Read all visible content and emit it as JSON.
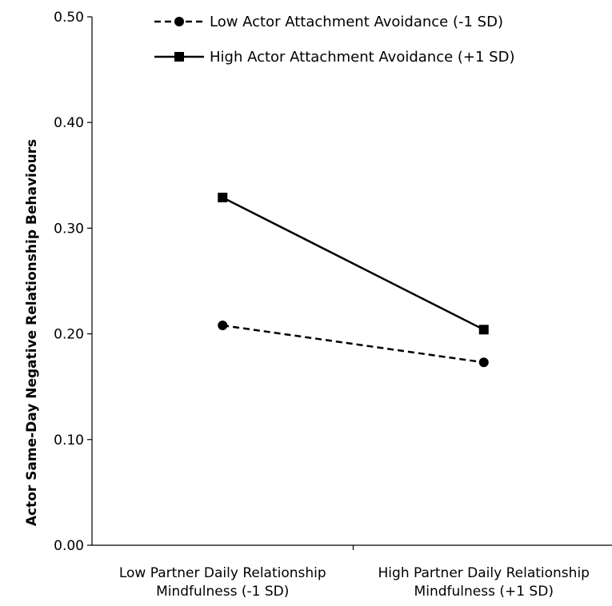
{
  "chart_data": {
    "type": "line",
    "title": "",
    "xlabel": "",
    "ylabel": "Actor Same-Day Negative Relationship Behaviours",
    "categories": [
      [
        "Low Partner Daily Relationship",
        "Mindfulness (-1 SD)"
      ],
      [
        "High Partner Daily Relationship",
        "Mindfulness (+1 SD)"
      ]
    ],
    "ylim": [
      0,
      0.5
    ],
    "yticks": [
      "0.00",
      "0.10",
      "0.20",
      "0.30",
      "0.40",
      "0.50"
    ],
    "grid": false,
    "legend_position": "top",
    "series": [
      {
        "name": "Low Actor Attachment Avoidance (-1 SD)",
        "values": [
          0.208,
          0.173
        ],
        "line_style": "dashed",
        "marker": "circle",
        "color": "#000000"
      },
      {
        "name": "High Actor Attachment Avoidance (+1 SD)",
        "values": [
          0.329,
          0.204
        ],
        "line_style": "solid",
        "marker": "square",
        "color": "#000000"
      }
    ]
  }
}
